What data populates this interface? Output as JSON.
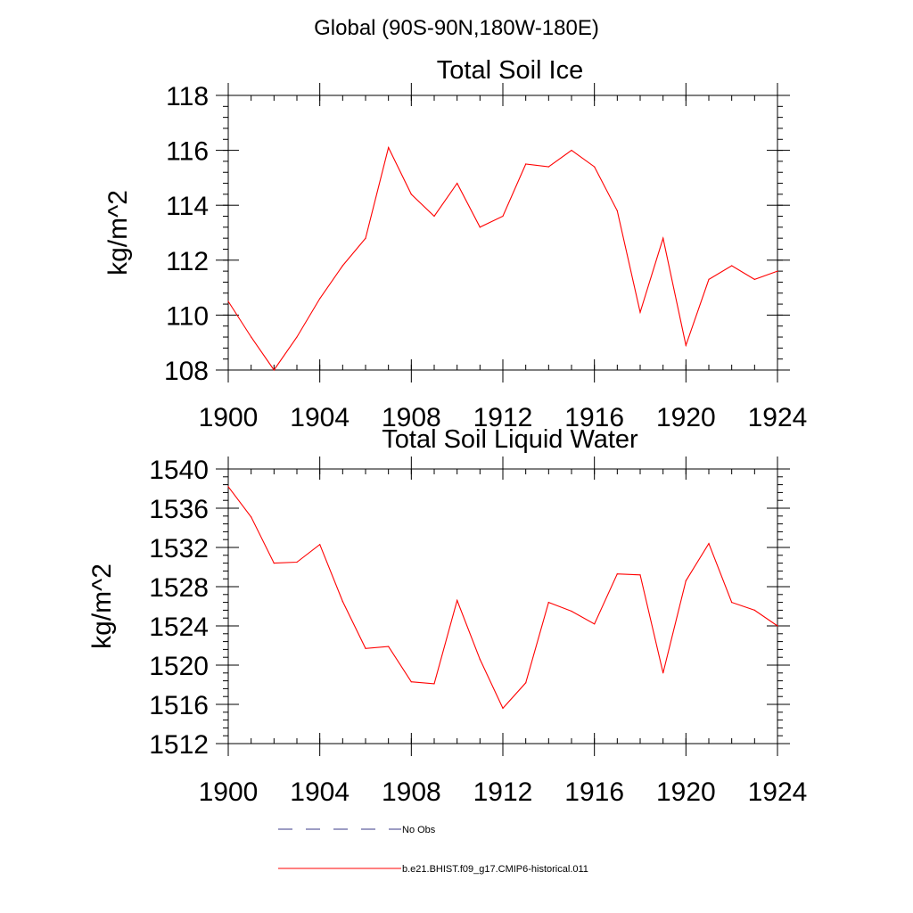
{
  "page": {
    "title": "Global (90S-90N,180W-180E)"
  },
  "chart_data": [
    {
      "type": "line",
      "title": "Total Soil Ice",
      "xlabel": "",
      "ylabel": "kg/m^2",
      "xlim": [
        1900,
        1924
      ],
      "ylim": [
        108,
        118
      ],
      "xticks": [
        1900,
        1904,
        1908,
        1912,
        1916,
        1920,
        1924
      ],
      "yticks": [
        108,
        110,
        112,
        114,
        116,
        118
      ],
      "x": [
        1900,
        1901,
        1902,
        1903,
        1904,
        1905,
        1906,
        1907,
        1908,
        1909,
        1910,
        1911,
        1912,
        1913,
        1914,
        1915,
        1916,
        1917,
        1918,
        1919,
        1920,
        1921,
        1922,
        1923,
        1924
      ],
      "series": [
        {
          "name": "b.e21.BHIST.f09_g17.CMIP6-historical.011",
          "color": "#ff0000",
          "values": [
            110.5,
            109.2,
            108.0,
            109.2,
            110.6,
            111.8,
            112.8,
            116.1,
            114.4,
            113.6,
            114.8,
            113.2,
            113.6,
            115.5,
            115.4,
            116.0,
            115.4,
            113.8,
            110.1,
            112.8,
            108.9,
            111.3,
            111.8,
            111.3,
            111.6
          ]
        }
      ]
    },
    {
      "type": "line",
      "title": "Total Soil Liquid Water",
      "xlabel": "",
      "ylabel": "kg/m^2",
      "xlim": [
        1900,
        1924
      ],
      "ylim": [
        1512,
        1540
      ],
      "xticks": [
        1900,
        1904,
        1908,
        1912,
        1916,
        1920,
        1924
      ],
      "yticks": [
        1512,
        1516,
        1520,
        1524,
        1528,
        1532,
        1536,
        1540
      ],
      "x": [
        1900,
        1901,
        1902,
        1903,
        1904,
        1905,
        1906,
        1907,
        1908,
        1909,
        1910,
        1911,
        1912,
        1913,
        1914,
        1915,
        1916,
        1917,
        1918,
        1919,
        1920,
        1921,
        1922,
        1923,
        1924
      ],
      "series": [
        {
          "name": "b.e21.BHIST.f09_g17.CMIP6-historical.011",
          "color": "#ff0000",
          "values": [
            1538.2,
            1535.1,
            1530.4,
            1530.5,
            1532.3,
            1526.5,
            1521.7,
            1521.9,
            1518.3,
            1518.1,
            1526.6,
            1520.6,
            1515.6,
            1518.2,
            1526.4,
            1525.5,
            1524.2,
            1529.3,
            1529.2,
            1519.2,
            1528.6,
            1532.4,
            1526.4,
            1525.6,
            1524.0
          ]
        }
      ]
    }
  ],
  "legend": {
    "items": [
      {
        "label": "No Obs",
        "color": "#3a3a8a",
        "style": "dashed"
      },
      {
        "label": "b.e21.BHIST.f09_g17.CMIP6-historical.011",
        "color": "#ff0000",
        "style": "solid"
      }
    ]
  }
}
